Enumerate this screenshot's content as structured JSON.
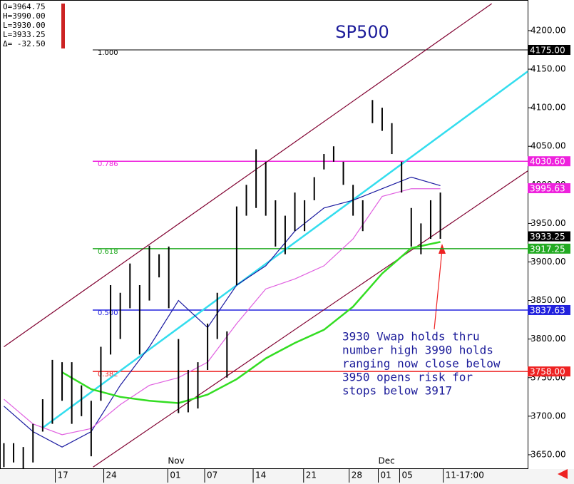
{
  "chart_data": {
    "type": "ohlc",
    "title": "SP500",
    "info": [
      "O=3964.75",
      "H=3990.00",
      "L=3930.00",
      "L=3933.25",
      "Δ= -32.50"
    ],
    "xlim": [
      -0.4,
      54
    ],
    "ylim": [
      3632.4,
      4239.7
    ],
    "yticks": [
      {
        "value": 3650,
        "label": "3650.00"
      },
      {
        "value": 3700,
        "label": "3700.00"
      },
      {
        "value": 3750,
        "label": "3750.00"
      },
      {
        "value": 3800,
        "label": "3800.00"
      },
      {
        "value": 3850,
        "label": "3850.00"
      },
      {
        "value": 3900,
        "label": "3900.00"
      },
      {
        "value": 3950,
        "label": "3950.00"
      },
      {
        "value": 4000,
        "label": "4000.00"
      },
      {
        "value": 4050,
        "label": "4050.00"
      },
      {
        "value": 4100,
        "label": "4100.00"
      },
      {
        "value": 4150,
        "label": "4150.00"
      },
      {
        "value": 4200,
        "label": "4200.00"
      }
    ],
    "xticks": [
      {
        "value": 5.3,
        "label": "17"
      },
      {
        "value": 10.3,
        "label": "24"
      },
      {
        "value": 16.9,
        "label": "01"
      },
      {
        "value": 20.7,
        "label": "07"
      },
      {
        "value": 25.7,
        "label": "14"
      },
      {
        "value": 30.9,
        "label": "21"
      },
      {
        "value": 35.6,
        "label": "28"
      },
      {
        "value": 38.6,
        "label": "01"
      },
      {
        "value": 40.8,
        "label": "05"
      },
      {
        "value": 45.3,
        "label": "11-17:00"
      }
    ],
    "month_labels": [
      {
        "value": 16.9,
        "label": "Nov"
      },
      {
        "value": 38.6,
        "label": "Dec"
      }
    ],
    "x": [
      0,
      1,
      2,
      3,
      4,
      5,
      6,
      7,
      8,
      9,
      10,
      11,
      12,
      13,
      14,
      15,
      16,
      17,
      18,
      19,
      20,
      21,
      22,
      23,
      24,
      25,
      26,
      27,
      28,
      29,
      30,
      31,
      32,
      33,
      34,
      35,
      36,
      37,
      38,
      39,
      40,
      41,
      42,
      43,
      44,
      45
    ],
    "high": [
      3665,
      3665,
      3660,
      3690,
      3722,
      3773,
      3770,
      3770,
      3740,
      3720,
      3790,
      3870,
      3860,
      3898,
      3870,
      3921,
      3910,
      3920,
      3800,
      3760,
      3770,
      3820,
      3860,
      3810,
      3972,
      4000,
      4046,
      4030,
      3980,
      3960,
      3990,
      3980,
      4010,
      4040,
      4050,
      4030,
      4000,
      3980,
      4110,
      4100,
      4080,
      4030,
      3970,
      3950,
      3980,
      3990
    ],
    "low": [
      3634,
      3640,
      3632,
      3640,
      3680,
      3690,
      3720,
      3690,
      3700,
      3648,
      3720,
      3780,
      3800,
      3840,
      3780,
      3850,
      3880,
      3840,
      3704,
      3705,
      3710,
      3760,
      3800,
      3750,
      3870,
      3960,
      3970,
      3960,
      3920,
      3910,
      3940,
      3940,
      3980,
      4020,
      4030,
      4000,
      3960,
      3940,
      4080,
      4070,
      4040,
      3990,
      3920,
      3910,
      3930,
      3930
    ],
    "bar_color": "#000000",
    "series": [
      {
        "color": "#1a1aa0",
        "x": [
          0,
          3,
          6,
          9,
          12,
          15,
          18,
          21,
          24,
          27,
          30,
          33,
          36,
          39,
          42,
          45
        ],
        "values": [
          3713,
          3680,
          3660,
          3680,
          3740,
          3790,
          3850,
          3815,
          3870,
          3895,
          3940,
          3970,
          3980,
          3995,
          4010,
          3999
        ]
      },
      {
        "color": "#e060e0",
        "x": [
          0,
          3,
          6,
          9,
          12,
          15,
          18,
          21,
          24,
          27,
          30,
          33,
          36,
          39,
          42,
          45
        ],
        "values": [
          3722,
          3690,
          3676,
          3684,
          3715,
          3740,
          3750,
          3770,
          3820,
          3865,
          3878,
          3895,
          3930,
          3985,
          3995,
          3995
        ]
      },
      {
        "color": "#33dd22",
        "x": [
          0,
          3,
          6,
          9,
          12,
          15,
          18,
          21,
          24,
          27,
          30,
          33,
          36,
          39,
          42,
          45
        ],
        "values": [
          null,
          null,
          3757,
          3735,
          3725,
          3720,
          3717,
          3728,
          3748,
          3775,
          3795,
          3812,
          3842,
          3885,
          3918,
          3926
        ]
      }
    ],
    "trend_lines": [
      {
        "color": "#800030",
        "x": [
          0,
          50.3
        ],
        "values": [
          3790,
          4235
        ]
      },
      {
        "color": "#800030",
        "x": [
          9.2,
          54
        ],
        "values": [
          3634,
          4018
        ]
      },
      {
        "color": "#33ddee",
        "x": [
          4,
          54
        ],
        "values": [
          3685,
          4147
        ]
      }
    ],
    "levels": [
      {
        "value": 4175,
        "label": "1.000",
        "tag": "4175.00",
        "color": "#000000"
      },
      {
        "value": 4030.6,
        "label": "0.786",
        "tag": "4030.60",
        "color": "#ee22dd"
      },
      {
        "value": 3917.25,
        "label": "0.618",
        "tag": "3917.25",
        "color": "#22aa22"
      },
      {
        "value": 3837.63,
        "label": "0.500",
        "tag": "3837.63",
        "color": "#2222dd"
      },
      {
        "value": 3758,
        "label": "0.382",
        "tag": "3758.00",
        "color": "#ee2222"
      }
    ],
    "price_tags": [
      {
        "value": 3995.63,
        "label": "3995.63",
        "color": "#ee22dd"
      },
      {
        "value": 3933.25,
        "label": "3933.25",
        "color": "#000000"
      }
    ],
    "annotation": [
      "3930 Vwap holds thru",
      "number high 3990 holds",
      "ranging now close below",
      "3950 opens risk for",
      "stops below 3917"
    ]
  }
}
